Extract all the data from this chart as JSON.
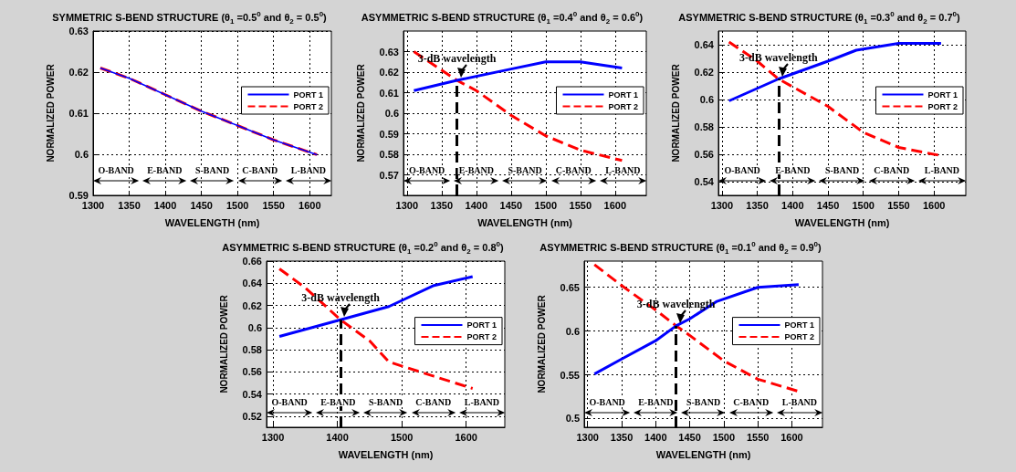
{
  "chart_data": [
    {
      "type": "line",
      "title": "SYMMETRIC S-BEND STRUCTURE (θ$_{1}$ =0.5$^{0}$ and θ$_{2}$ = 0.5$^{0}$)",
      "xlabel": "WAVELENGTH (nm)",
      "ylabel": "NORMALIZED POWER",
      "grid": true,
      "legend": "right",
      "xlim": [
        1300,
        1630
      ],
      "xticks": [
        1300,
        1350,
        1400,
        1450,
        1500,
        1550,
        1600
      ],
      "ylim": [
        0.59,
        0.63
      ],
      "yticks": [
        0.59,
        0.6,
        0.61,
        0.62,
        0.63
      ],
      "series": [
        {
          "name": "PORT 1",
          "color": "#0000ff",
          "line_style": "solid",
          "x": [
            1310,
            1350,
            1400,
            1450,
            1500,
            1550,
            1610
          ],
          "values": [
            0.621,
            0.6185,
            0.6145,
            0.6105,
            0.607,
            0.6035,
            0.5999
          ]
        },
        {
          "name": "PORT 2",
          "color": "#ff0000",
          "line_style": "dashed",
          "x": [
            1310,
            1350,
            1400,
            1450,
            1500,
            1550,
            1610
          ],
          "values": [
            0.621,
            0.6185,
            0.6145,
            0.6105,
            0.607,
            0.6035,
            0.5999
          ]
        }
      ],
      "annotations": [
        "O-BAND",
        "E-BAND",
        "S-BAND",
        "C-BAND",
        "L-BAND"
      ]
    },
    {
      "type": "line",
      "title": "ASYMMETRIC S-BEND STRUCTURE (θ$_{1}$ =0.4$^{0}$ and θ$_{2}$ = 0.6$^{0}$)",
      "xlabel": "WAVELENGTH (nm)",
      "ylabel": "NORMALIZED POWER",
      "grid": true,
      "legend": "right",
      "xlim": [
        1295,
        1645
      ],
      "xticks": [
        1300,
        1350,
        1400,
        1450,
        1500,
        1550,
        1600
      ],
      "ylim": [
        0.56,
        0.64
      ],
      "yticks": [
        0.57,
        0.58,
        0.59,
        0.6,
        0.61,
        0.62,
        0.63
      ],
      "series": [
        {
          "name": "PORT 1",
          "color": "#0000ff",
          "line_style": "solid",
          "x": [
            1310,
            1372,
            1450,
            1500,
            1550,
            1610
          ],
          "values": [
            0.611,
            0.616,
            0.6215,
            0.625,
            0.625,
            0.622
          ]
        },
        {
          "name": "PORT 2",
          "color": "#ff0000",
          "line_style": "dashed",
          "x": [
            1310,
            1372,
            1400,
            1450,
            1500,
            1550,
            1610
          ],
          "values": [
            0.63,
            0.616,
            0.611,
            0.599,
            0.589,
            0.582,
            0.577
          ]
        }
      ],
      "ref_lines": [
        {
          "axis": "x",
          "value": 1372,
          "label": "3-dB wavelength",
          "color": "#000000",
          "line_style": "dashed"
        }
      ],
      "annotations": [
        "O-BAND",
        "E-BAND",
        "S-BAND",
        "C-BAND",
        "L-BAND"
      ]
    },
    {
      "type": "line",
      "title": "ASYMMETRIC S-BEND STRUCTURE (θ$_{1}$ =0.3$^{0}$ and θ$_{2}$ = 0.7$^{0}$)",
      "xlabel": "WAVELENGTH (nm)",
      "ylabel": "NORMALIZED POWER",
      "grid": true,
      "legend": "right",
      "xlim": [
        1295,
        1645
      ],
      "xticks": [
        1300,
        1350,
        1400,
        1450,
        1500,
        1550,
        1600
      ],
      "ylim": [
        0.53,
        0.65
      ],
      "yticks": [
        0.54,
        0.56,
        0.58,
        0.6,
        0.62,
        0.64
      ],
      "series": [
        {
          "name": "PORT 1",
          "color": "#0000ff",
          "line_style": "solid",
          "x": [
            1310,
            1380,
            1450,
            1490,
            1550,
            1610
          ],
          "values": [
            0.599,
            0.615,
            0.628,
            0.636,
            0.641,
            0.641
          ]
        },
        {
          "name": "PORT 2",
          "color": "#ff0000",
          "line_style": "dashed",
          "x": [
            1310,
            1350,
            1380,
            1450,
            1500,
            1550,
            1610
          ],
          "values": [
            0.642,
            0.628,
            0.615,
            0.595,
            0.576,
            0.565,
            0.559
          ]
        }
      ],
      "ref_lines": [
        {
          "axis": "x",
          "value": 1380,
          "label": "3-dB wavelength",
          "color": "#000000",
          "line_style": "dashed"
        }
      ],
      "annotations": [
        "O-BAND",
        "E-BAND",
        "S-BAND",
        "C-BAND",
        "L-BAND"
      ]
    },
    {
      "type": "line",
      "title": "ASYMMETRIC S-BEND STRUCTURE (θ$_{1}$ =0.2$^{0}$ and θ$_{2}$ = 0.8$^{0}$)",
      "xlabel": "WAVELENGTH (nm)",
      "ylabel": "NORMALIZED POWER",
      "grid": true,
      "legend": "right",
      "xlim": [
        1290,
        1660
      ],
      "xticks": [
        1300,
        1400,
        1500,
        1600
      ],
      "ylim": [
        0.51,
        0.66
      ],
      "yticks": [
        0.52,
        0.54,
        0.56,
        0.58,
        0.6,
        0.62,
        0.64,
        0.66
      ],
      "series": [
        {
          "name": "PORT 1",
          "color": "#0000ff",
          "line_style": "solid",
          "x": [
            1310,
            1405,
            1480,
            1550,
            1610
          ],
          "values": [
            0.592,
            0.607,
            0.619,
            0.638,
            0.646
          ]
        },
        {
          "name": "PORT 2",
          "color": "#ff0000",
          "line_style": "dashed",
          "x": [
            1310,
            1350,
            1405,
            1450,
            1480,
            1550,
            1610
          ],
          "values": [
            0.653,
            0.636,
            0.607,
            0.588,
            0.569,
            0.556,
            0.545
          ]
        }
      ],
      "ref_lines": [
        {
          "axis": "x",
          "value": 1405,
          "label": "3-dB wavelength",
          "color": "#000000",
          "line_style": "dashed"
        }
      ],
      "annotations": [
        "O-BAND",
        "E-BAND",
        "S-BAND",
        "C-BAND",
        "L-BAND"
      ]
    },
    {
      "type": "line",
      "title": "ASYMMETRIC S-BEND STRUCTURE (θ$_{1}$ =0.1$^{0}$ and θ$_{2}$ = 0.9$^{0}$)",
      "xlabel": "WAVELENGTH (nm)",
      "ylabel": "NORMALIZED POWER",
      "grid": true,
      "legend": "right",
      "xlim": [
        1295,
        1645
      ],
      "xticks": [
        1300,
        1350,
        1400,
        1450,
        1500,
        1550,
        1600
      ],
      "ylim": [
        0.49,
        0.68
      ],
      "yticks": [
        0.5,
        0.55,
        0.6,
        0.65
      ],
      "series": [
        {
          "name": "PORT 1",
          "color": "#0000ff",
          "line_style": "solid",
          "x": [
            1310,
            1350,
            1400,
            1430,
            1450,
            1490,
            1550,
            1610
          ],
          "values": [
            0.551,
            0.568,
            0.589,
            0.606,
            0.614,
            0.634,
            0.65,
            0.653
          ]
        },
        {
          "name": "PORT 2",
          "color": "#ff0000",
          "line_style": "dashed",
          "x": [
            1310,
            1350,
            1400,
            1430,
            1450,
            1500,
            1550,
            1610
          ],
          "values": [
            0.676,
            0.652,
            0.624,
            0.606,
            0.595,
            0.566,
            0.545,
            0.531
          ]
        }
      ],
      "ref_lines": [
        {
          "axis": "x",
          "value": 1430,
          "label": "3-dB wavelength",
          "color": "#000000",
          "line_style": "dashed"
        }
      ],
      "annotations": [
        "O-BAND",
        "E-BAND",
        "S-BAND",
        "C-BAND",
        "L-BAND"
      ]
    }
  ]
}
